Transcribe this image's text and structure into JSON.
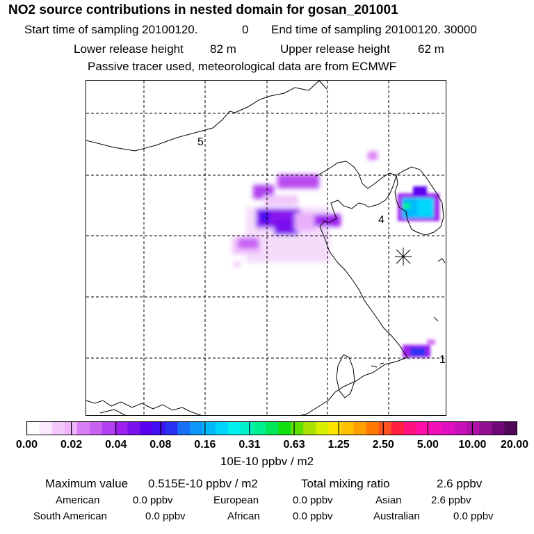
{
  "header": {
    "title": "NO2 source contributions in nested domain for gosan_201001",
    "start_label": "Start time of sampling 20100120.",
    "start_hour": "0",
    "end_label": "End time of sampling 20100120. 30000",
    "lower_label": "Lower release height",
    "lower_value": "82 m",
    "upper_label": "Upper release height",
    "upper_value": "62 m",
    "note": "Passive tracer used, meteorological data are from ECMWF"
  },
  "map": {
    "labels": [
      "5",
      "4",
      "1"
    ],
    "receptor_icon": "asterisk-icon"
  },
  "colorbar": {
    "colors": [
      "#ffffff",
      "#fbeafe",
      "#f3c8fb",
      "#eeb3fb",
      "#d97ef5",
      "#c762f3",
      "#b040f0",
      "#9e20ef",
      "#7a10ee",
      "#5a00ee",
      "#4010f0",
      "#2a30f2",
      "#1870f6",
      "#0c98f8",
      "#00b8fa",
      "#00d6fb",
      "#00f0f0",
      "#00f0c8",
      "#00f090",
      "#00e85a",
      "#10e010",
      "#60e000",
      "#a8e000",
      "#d8f000",
      "#ffe400",
      "#ffc000",
      "#ffa000",
      "#ff7800",
      "#ff5020",
      "#ff2040",
      "#ff1080",
      "#ff10a8",
      "#f410b8",
      "#e010c0",
      "#c810b8",
      "#b010a8",
      "#901090",
      "#700878",
      "#500858"
    ],
    "ticks": [
      "0.00",
      "0.02",
      "0.04",
      "0.08",
      "0.16",
      "0.31",
      "0.63",
      "1.25",
      "2.50",
      "5.00",
      "10.00",
      "20.00"
    ],
    "units": "10E-10 ppbv / m2"
  },
  "summary": {
    "max_label": "Maximum value",
    "max_value": "0.515E-10 ppbv / m2",
    "total_label": "Total mixing ratio",
    "total_value": "2.6 ppbv",
    "regions": [
      {
        "name": "American",
        "value": "0.0 ppbv"
      },
      {
        "name": "European",
        "value": "0.0 ppbv"
      },
      {
        "name": "Asian",
        "value": "2.6 ppbv"
      },
      {
        "name": "South American",
        "value": "0.0 ppbv"
      },
      {
        "name": "African",
        "value": "0.0 ppbv"
      },
      {
        "name": "Australian",
        "value": "0.0 ppbv"
      }
    ]
  }
}
